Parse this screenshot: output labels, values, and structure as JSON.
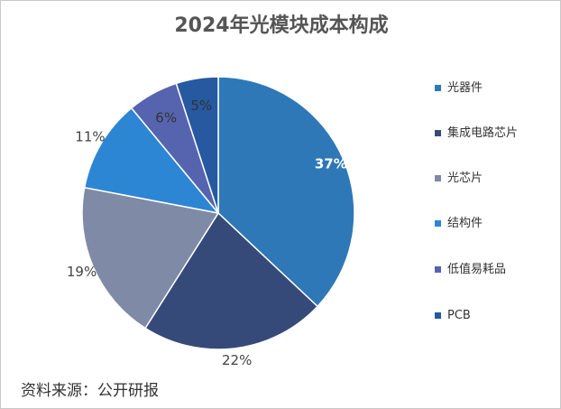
{
  "chart_data": {
    "type": "pie",
    "title": "2024年光模块成本构成",
    "categories": [
      "光器件",
      "集成电路芯片",
      "光芯片",
      "结构件",
      "低值易耗品",
      "PCB"
    ],
    "values": [
      37,
      22,
      19,
      11,
      6,
      5
    ],
    "value_labels": [
      "37%",
      "22%",
      "19%",
      "11%",
      "6%",
      "5%"
    ],
    "colors": [
      "#2f78b8",
      "#364a7a",
      "#7f8aa6",
      "#2c86d4",
      "#5664b0",
      "#2659a0"
    ],
    "legend": "right",
    "source": "资料来源：公开研报"
  }
}
